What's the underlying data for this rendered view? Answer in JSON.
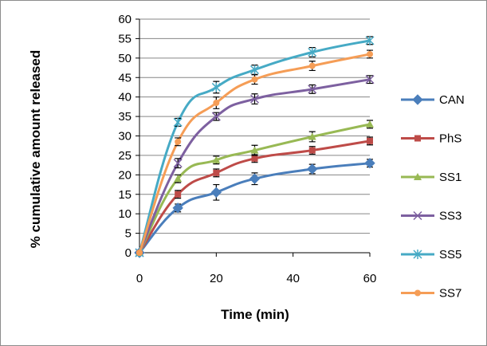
{
  "chart_data": {
    "type": "line",
    "title": "",
    "xlabel": "Time (min)",
    "ylabel": "% cumulative amount released",
    "xlim": [
      0,
      60
    ],
    "ylim": [
      0,
      60
    ],
    "xticks": [
      0,
      20,
      40,
      60
    ],
    "yticks": [
      0,
      5,
      10,
      15,
      20,
      25,
      30,
      35,
      40,
      45,
      50,
      55,
      60
    ],
    "grid": "horizontal",
    "legend_position": "right",
    "x": [
      0,
      10,
      20,
      30,
      45,
      60
    ],
    "series": [
      {
        "name": "CAN",
        "color": "#4a7ebb",
        "marker": "diamond",
        "values": [
          0,
          11.5,
          15.5,
          19,
          21.5,
          23
        ],
        "errors": [
          0,
          1,
          2,
          1.5,
          1.2,
          1
        ]
      },
      {
        "name": "PhS",
        "color": "#be4b48",
        "marker": "square",
        "values": [
          0,
          15,
          20.5,
          24.2,
          26.3,
          28.7
        ],
        "errors": [
          0,
          1,
          1,
          1,
          1,
          1
        ]
      },
      {
        "name": "SS1",
        "color": "#98b954",
        "marker": "triangle",
        "values": [
          0,
          19,
          23.8,
          26.3,
          29.8,
          33
        ],
        "errors": [
          0,
          1,
          1,
          1.3,
          1.3,
          1
        ]
      },
      {
        "name": "SS3",
        "color": "#7d60a0",
        "marker": "x",
        "values": [
          0,
          23,
          35,
          39.5,
          42,
          44.5
        ],
        "errors": [
          0,
          1.2,
          1,
          1.3,
          1.1,
          1
        ]
      },
      {
        "name": "SS5",
        "color": "#46aac5",
        "marker": "star",
        "values": [
          0,
          33.5,
          42.5,
          47,
          51.5,
          54.5
        ],
        "errors": [
          0,
          1,
          1.5,
          1.2,
          1.2,
          1
        ]
      },
      {
        "name": "SS7",
        "color": "#f59d56",
        "marker": "circle",
        "values": [
          0,
          28.5,
          38.5,
          44.5,
          48,
          51
        ],
        "errors": [
          0,
          1,
          1.5,
          1.2,
          1.2,
          1
        ]
      }
    ]
  }
}
